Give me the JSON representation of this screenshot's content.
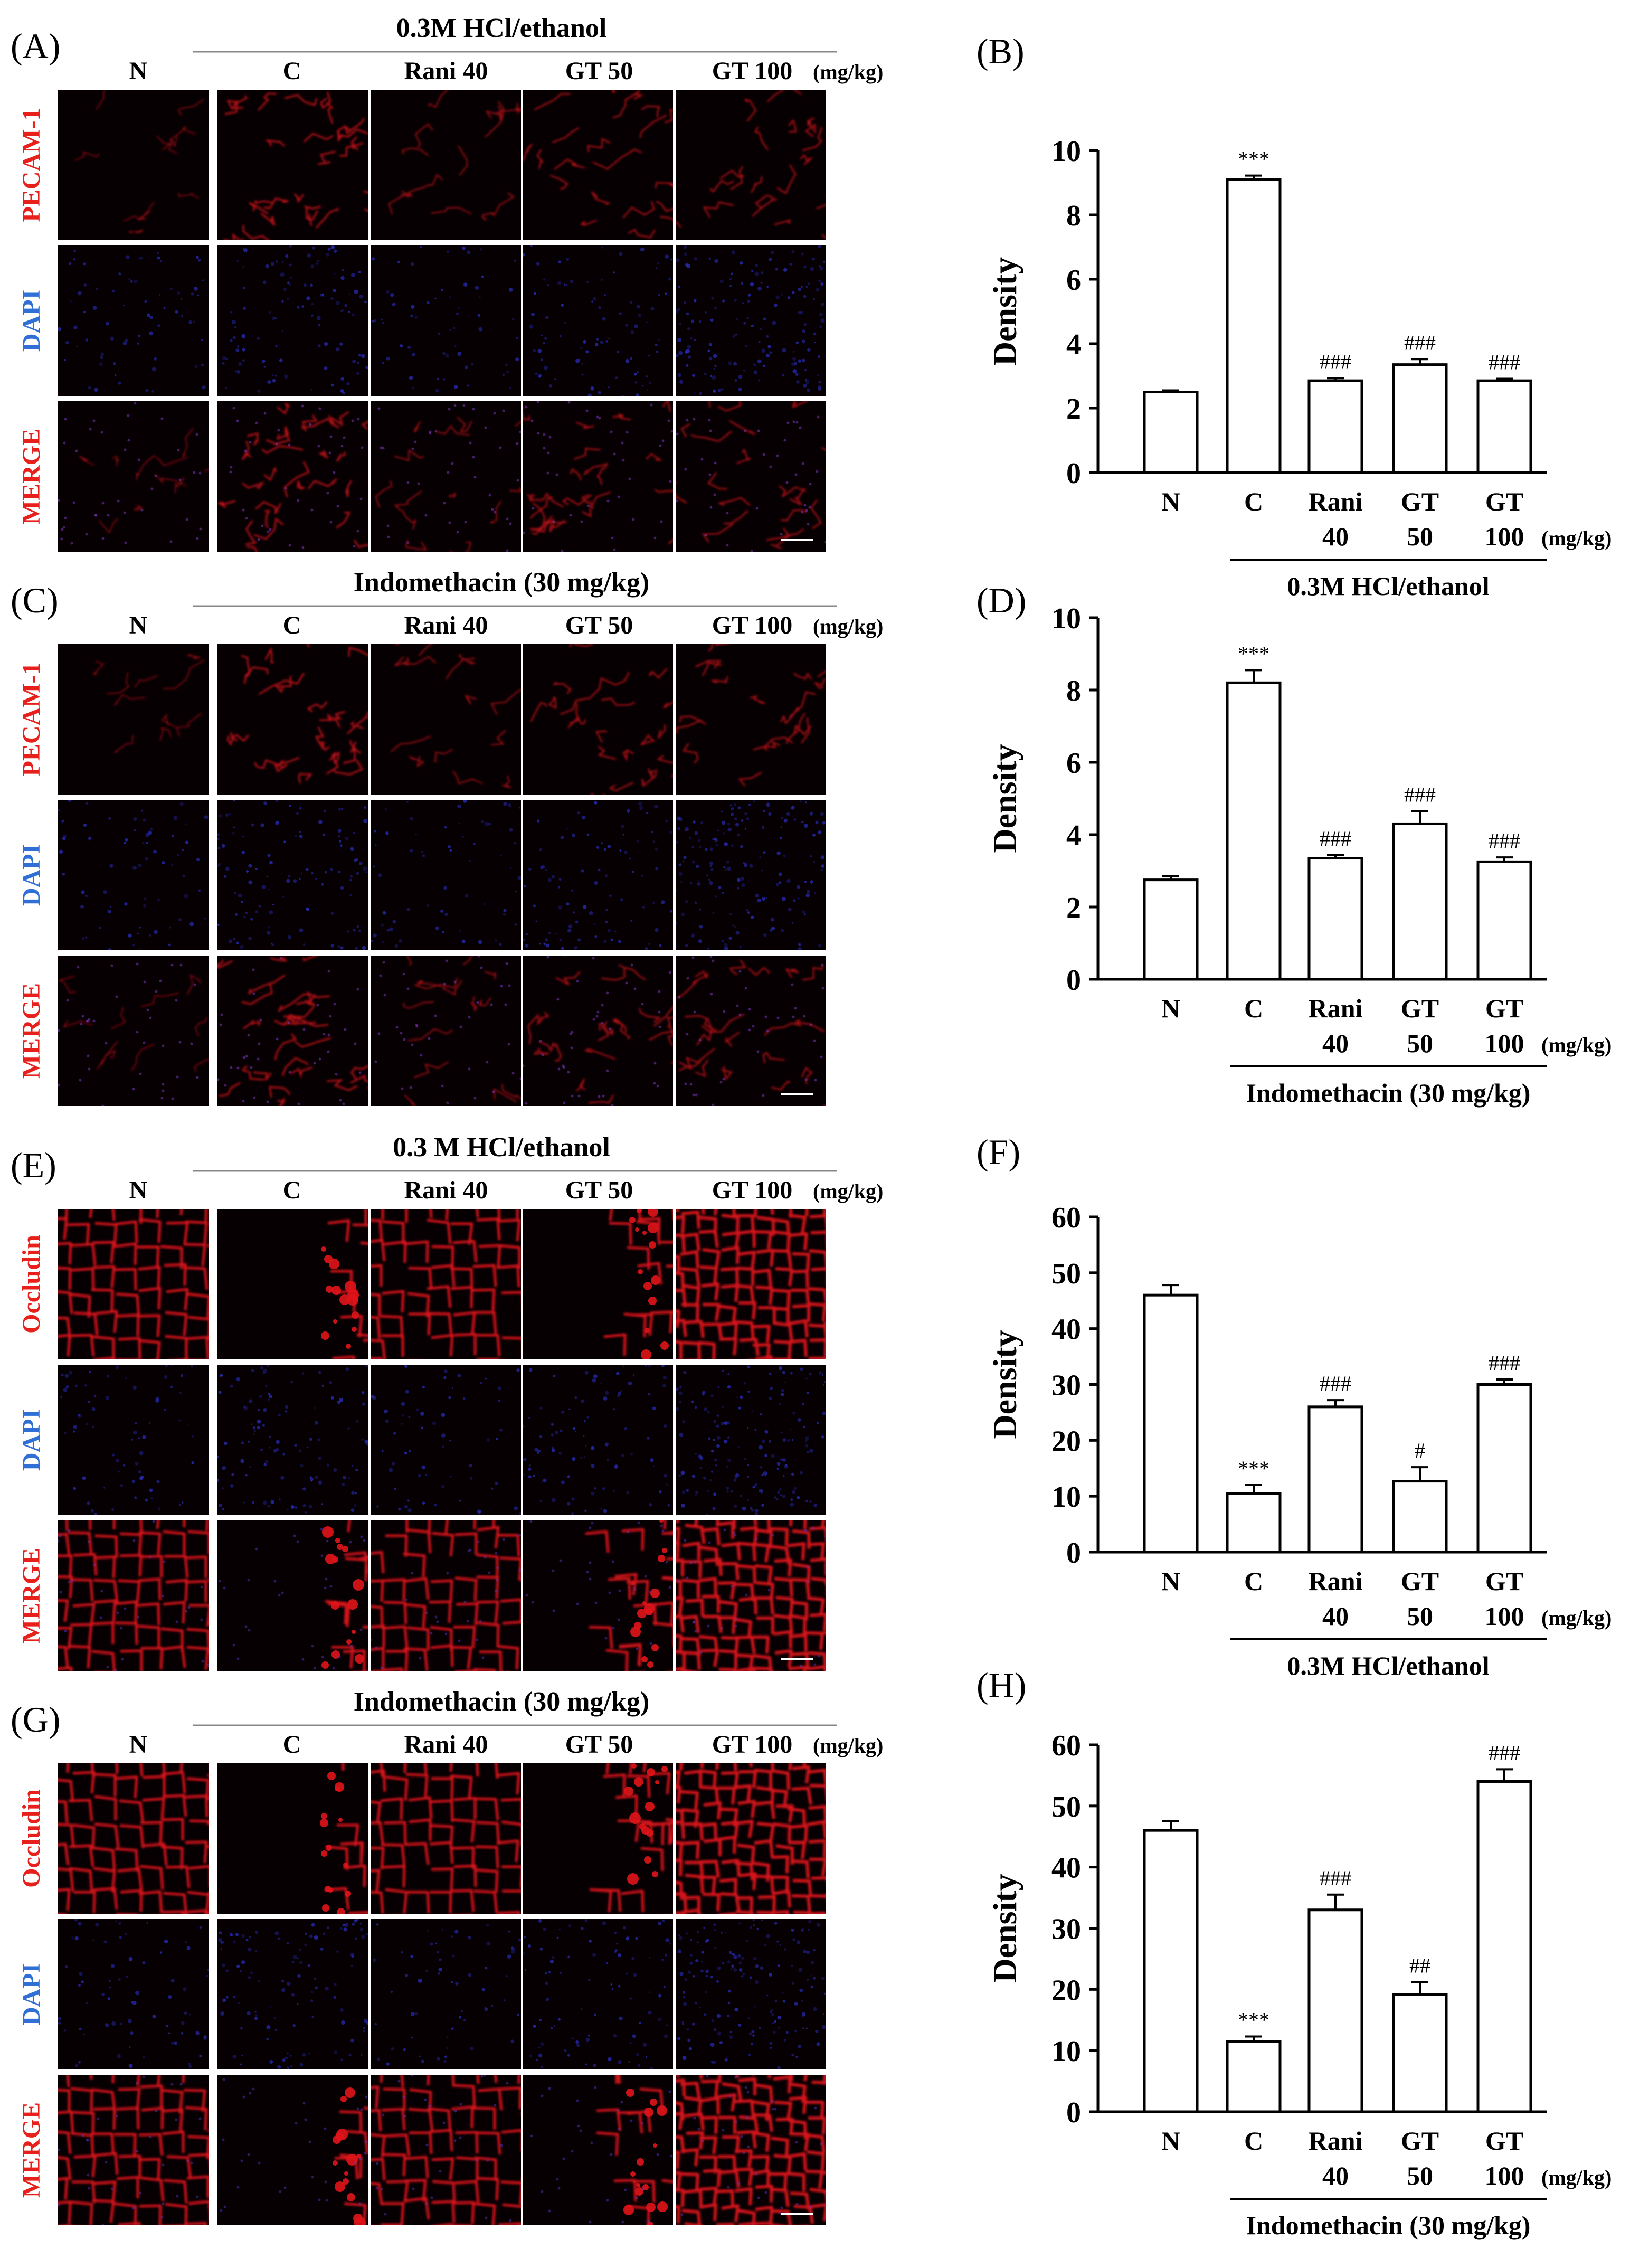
{
  "colors": {
    "red_label": "#e8201c",
    "blue_label": "#2f6fd6",
    "tile_bg": "#060003",
    "red_stain": "#e0141a",
    "blue_stain": "#2e33d8",
    "bar_fill": "#ffffff",
    "ink": "#000000"
  },
  "units": "(mg/kg)",
  "image_panels": [
    {
      "label": "(A)",
      "header": "0.3M HCl/ethanol",
      "columns": [
        "N",
        "C",
        "Rani 40",
        "GT 50",
        "GT 100"
      ],
      "rows": [
        "PECAM-1",
        "DAPI",
        "MERGE"
      ],
      "row_colors": [
        "red",
        "blue",
        "red"
      ],
      "stain_type": "pecam"
    },
    {
      "label": "(C)",
      "header": "Indomethacin (30 mg/kg)",
      "columns": [
        "N",
        "C",
        "Rani 40",
        "GT 50",
        "GT 100"
      ],
      "rows": [
        "PECAM-1",
        "DAPI",
        "MERGE"
      ],
      "row_colors": [
        "red",
        "blue",
        "red"
      ],
      "stain_type": "pecam"
    },
    {
      "label": "(E)",
      "header": "0.3 M HCl/ethanol",
      "columns": [
        "N",
        "C",
        "Rani 40",
        "GT 50",
        "GT 100"
      ],
      "rows": [
        "Occludin",
        "DAPI",
        "MERGE"
      ],
      "row_colors": [
        "red",
        "blue",
        "red"
      ],
      "stain_type": "occludin"
    },
    {
      "label": "(G)",
      "header": "Indomethacin (30 mg/kg)",
      "columns": [
        "N",
        "C",
        "Rani 40",
        "GT 50",
        "GT 100"
      ],
      "rows": [
        "Occludin",
        "DAPI",
        "MERGE"
      ],
      "row_colors": [
        "red",
        "blue",
        "red"
      ],
      "stain_type": "occludin"
    }
  ],
  "chart_data": [
    {
      "label": "(B)",
      "type": "bar",
      "categories": [
        [
          "N"
        ],
        [
          "C"
        ],
        [
          "Rani",
          "40"
        ],
        [
          "GT",
          "50"
        ],
        [
          "GT",
          "100"
        ]
      ],
      "values": [
        2.5,
        9.1,
        2.85,
        3.35,
        2.85
      ],
      "errors": [
        0.05,
        0.12,
        0.08,
        0.17,
        0.06
      ],
      "significance": [
        "",
        "***",
        "###",
        "###",
        "###"
      ],
      "ylabel": "Density",
      "ylim": [
        0,
        10
      ],
      "yticks": [
        0,
        2,
        4,
        6,
        8,
        10
      ],
      "group_label": "0.3M  HCl/ethanol",
      "grid": false
    },
    {
      "label": "(D)",
      "type": "bar",
      "categories": [
        [
          "N"
        ],
        [
          "C"
        ],
        [
          "Rani",
          "40"
        ],
        [
          "GT",
          "50"
        ],
        [
          "GT",
          "100"
        ]
      ],
      "values": [
        2.75,
        8.2,
        3.35,
        4.3,
        3.25
      ],
      "errors": [
        0.1,
        0.35,
        0.08,
        0.35,
        0.12
      ],
      "significance": [
        "",
        "***",
        "###",
        "###",
        "###"
      ],
      "ylabel": "Density",
      "ylim": [
        0,
        10
      ],
      "yticks": [
        0,
        2,
        4,
        6,
        8,
        10
      ],
      "group_label": "Indomethacin (30 mg/kg)",
      "grid": false
    },
    {
      "label": "(F)",
      "type": "bar",
      "categories": [
        [
          "N"
        ],
        [
          "C"
        ],
        [
          "Rani",
          "40"
        ],
        [
          "GT",
          "50"
        ],
        [
          "GT",
          "100"
        ]
      ],
      "values": [
        46,
        10.5,
        26,
        12.7,
        30
      ],
      "errors": [
        1.8,
        1.5,
        1.2,
        2.5,
        0.9
      ],
      "significance": [
        "",
        "***",
        "###",
        "#",
        "###"
      ],
      "ylabel": "Density",
      "ylim": [
        0,
        60
      ],
      "yticks": [
        0,
        10,
        20,
        30,
        40,
        50,
        60
      ],
      "group_label": "0.3M  HCl/ethanol",
      "grid": false
    },
    {
      "label": "(H)",
      "type": "bar",
      "categories": [
        [
          "N"
        ],
        [
          "C"
        ],
        [
          "Rani",
          "40"
        ],
        [
          "GT",
          "50"
        ],
        [
          "GT",
          "100"
        ]
      ],
      "values": [
        46,
        11.5,
        33,
        19.2,
        54
      ],
      "errors": [
        1.5,
        0.8,
        2.5,
        2.0,
        2.0
      ],
      "significance": [
        "",
        "***",
        "###",
        "##",
        "###"
      ],
      "ylabel": "Density",
      "ylim": [
        0,
        60
      ],
      "yticks": [
        0,
        10,
        20,
        30,
        40,
        50,
        60
      ],
      "group_label": "Indomethacin (30 mg/kg)",
      "grid": false
    }
  ]
}
